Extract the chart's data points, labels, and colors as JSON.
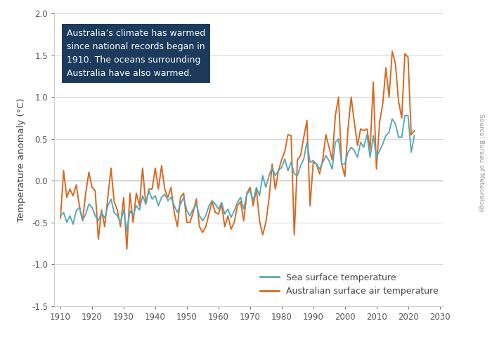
{
  "ylabel": "Temperature anomaly (°C)",
  "source_text": "Source: Bureau of Meteorology",
  "annotation_text": "Australia’s climate has warmed\nsince national records began in\n1910. The oceans surrounding\nAustralia have also warmed.",
  "annotation_box_color": "#1b3a5c",
  "annotation_text_color": "#ffffff",
  "xlim": [
    1908,
    2031
  ],
  "ylim": [
    -1.5,
    2.0
  ],
  "xticks": [
    1910,
    1920,
    1930,
    1940,
    1950,
    1960,
    1970,
    1980,
    1990,
    2000,
    2010,
    2020,
    2030
  ],
  "yticks": [
    -1.5,
    -1.0,
    -0.5,
    0.0,
    0.5,
    1.0,
    1.5,
    2.0
  ],
  "sea_color": "#5aa8b8",
  "air_color": "#d96820",
  "legend_sea": "Sea surface temperature",
  "legend_air": "Australian surface air temperature",
  "background_color": "#ffffff",
  "grid_color": "#d0d0d0",
  "sea_years": [
    1910,
    1911,
    1912,
    1913,
    1914,
    1915,
    1916,
    1917,
    1918,
    1919,
    1920,
    1921,
    1922,
    1923,
    1924,
    1925,
    1926,
    1927,
    1928,
    1929,
    1930,
    1931,
    1932,
    1933,
    1934,
    1935,
    1936,
    1937,
    1938,
    1939,
    1940,
    1941,
    1942,
    1943,
    1944,
    1945,
    1946,
    1947,
    1948,
    1949,
    1950,
    1951,
    1952,
    1953,
    1954,
    1955,
    1956,
    1957,
    1958,
    1959,
    1960,
    1961,
    1962,
    1963,
    1964,
    1965,
    1966,
    1967,
    1968,
    1969,
    1970,
    1971,
    1972,
    1973,
    1974,
    1975,
    1976,
    1977,
    1978,
    1979,
    1980,
    1981,
    1982,
    1983,
    1984,
    1985,
    1986,
    1987,
    1988,
    1989,
    1990,
    1991,
    1992,
    1993,
    1994,
    1995,
    1996,
    1997,
    1998,
    1999,
    2000,
    2001,
    2002,
    2003,
    2004,
    2005,
    2006,
    2007,
    2008,
    2009,
    2010,
    2011,
    2012,
    2013,
    2014,
    2015,
    2016,
    2017,
    2018,
    2019,
    2020,
    2021,
    2022
  ],
  "sea_values": [
    -0.42,
    -0.38,
    -0.5,
    -0.42,
    -0.52,
    -0.36,
    -0.32,
    -0.48,
    -0.4,
    -0.28,
    -0.32,
    -0.42,
    -0.48,
    -0.38,
    -0.45,
    -0.3,
    -0.22,
    -0.38,
    -0.42,
    -0.5,
    -0.35,
    -0.6,
    -0.36,
    -0.42,
    -0.3,
    -0.35,
    -0.18,
    -0.28,
    -0.12,
    -0.22,
    -0.18,
    -0.3,
    -0.2,
    -0.16,
    -0.24,
    -0.2,
    -0.3,
    -0.38,
    -0.28,
    -0.2,
    -0.36,
    -0.42,
    -0.34,
    -0.28,
    -0.42,
    -0.48,
    -0.42,
    -0.3,
    -0.24,
    -0.28,
    -0.34,
    -0.26,
    -0.4,
    -0.34,
    -0.44,
    -0.36,
    -0.26,
    -0.2,
    -0.34,
    -0.16,
    -0.12,
    -0.24,
    -0.08,
    -0.18,
    0.06,
    -0.08,
    0.06,
    0.16,
    0.06,
    0.12,
    0.16,
    0.26,
    0.12,
    0.22,
    0.08,
    0.06,
    0.18,
    0.26,
    0.46,
    0.22,
    0.24,
    0.2,
    0.14,
    0.22,
    0.3,
    0.24,
    0.14,
    0.46,
    0.5,
    0.2,
    0.2,
    0.34,
    0.4,
    0.36,
    0.28,
    0.46,
    0.4,
    0.55,
    0.28,
    0.54,
    0.28,
    0.36,
    0.44,
    0.54,
    0.58,
    0.74,
    0.68,
    0.52,
    0.52,
    0.78,
    0.78,
    0.34,
    0.54
  ],
  "air_years": [
    1910,
    1911,
    1912,
    1913,
    1914,
    1915,
    1916,
    1917,
    1918,
    1919,
    1920,
    1921,
    1922,
    1923,
    1924,
    1925,
    1926,
    1927,
    1928,
    1929,
    1930,
    1931,
    1932,
    1933,
    1934,
    1935,
    1936,
    1937,
    1938,
    1939,
    1940,
    1941,
    1942,
    1943,
    1944,
    1945,
    1946,
    1947,
    1948,
    1949,
    1950,
    1951,
    1952,
    1953,
    1954,
    1955,
    1956,
    1957,
    1958,
    1959,
    1960,
    1961,
    1962,
    1963,
    1964,
    1965,
    1966,
    1967,
    1968,
    1969,
    1970,
    1971,
    1972,
    1973,
    1974,
    1975,
    1976,
    1977,
    1978,
    1979,
    1980,
    1981,
    1982,
    1983,
    1984,
    1985,
    1986,
    1987,
    1988,
    1989,
    1990,
    1991,
    1992,
    1993,
    1994,
    1995,
    1996,
    1997,
    1998,
    1999,
    2000,
    2001,
    2002,
    2003,
    2004,
    2005,
    2006,
    2007,
    2008,
    2009,
    2010,
    2011,
    2012,
    2013,
    2014,
    2015,
    2016,
    2017,
    2018,
    2019,
    2020,
    2021,
    2022
  ],
  "air_values": [
    -0.45,
    0.12,
    -0.2,
    -0.1,
    -0.18,
    -0.05,
    -0.3,
    -0.48,
    -0.15,
    0.1,
    -0.08,
    -0.12,
    -0.7,
    -0.35,
    -0.55,
    -0.2,
    0.15,
    -0.25,
    -0.35,
    -0.55,
    -0.2,
    -0.82,
    -0.15,
    -0.5,
    -0.15,
    -0.3,
    0.15,
    -0.28,
    -0.1,
    -0.1,
    0.15,
    -0.1,
    0.18,
    -0.1,
    -0.2,
    -0.08,
    -0.38,
    -0.55,
    -0.2,
    -0.15,
    -0.5,
    -0.5,
    -0.38,
    -0.22,
    -0.55,
    -0.62,
    -0.55,
    -0.4,
    -0.25,
    -0.38,
    -0.4,
    -0.28,
    -0.55,
    -0.42,
    -0.58,
    -0.5,
    -0.3,
    -0.25,
    -0.48,
    -0.15,
    -0.08,
    -0.3,
    -0.1,
    -0.48,
    -0.65,
    -0.5,
    -0.22,
    0.2,
    -0.1,
    0.12,
    0.25,
    0.35,
    0.55,
    0.54,
    -0.65,
    0.25,
    0.3,
    0.52,
    0.72,
    -0.3,
    0.22,
    0.2,
    0.08,
    0.25,
    0.55,
    0.4,
    0.25,
    0.78,
    1.0,
    0.2,
    0.05,
    0.62,
    1.0,
    0.7,
    0.42,
    0.62,
    0.6,
    0.62,
    0.38,
    1.18,
    0.14,
    0.7,
    0.92,
    1.35,
    1.0,
    1.55,
    1.4,
    0.95,
    0.75,
    1.52,
    1.48,
    0.55,
    0.6
  ]
}
